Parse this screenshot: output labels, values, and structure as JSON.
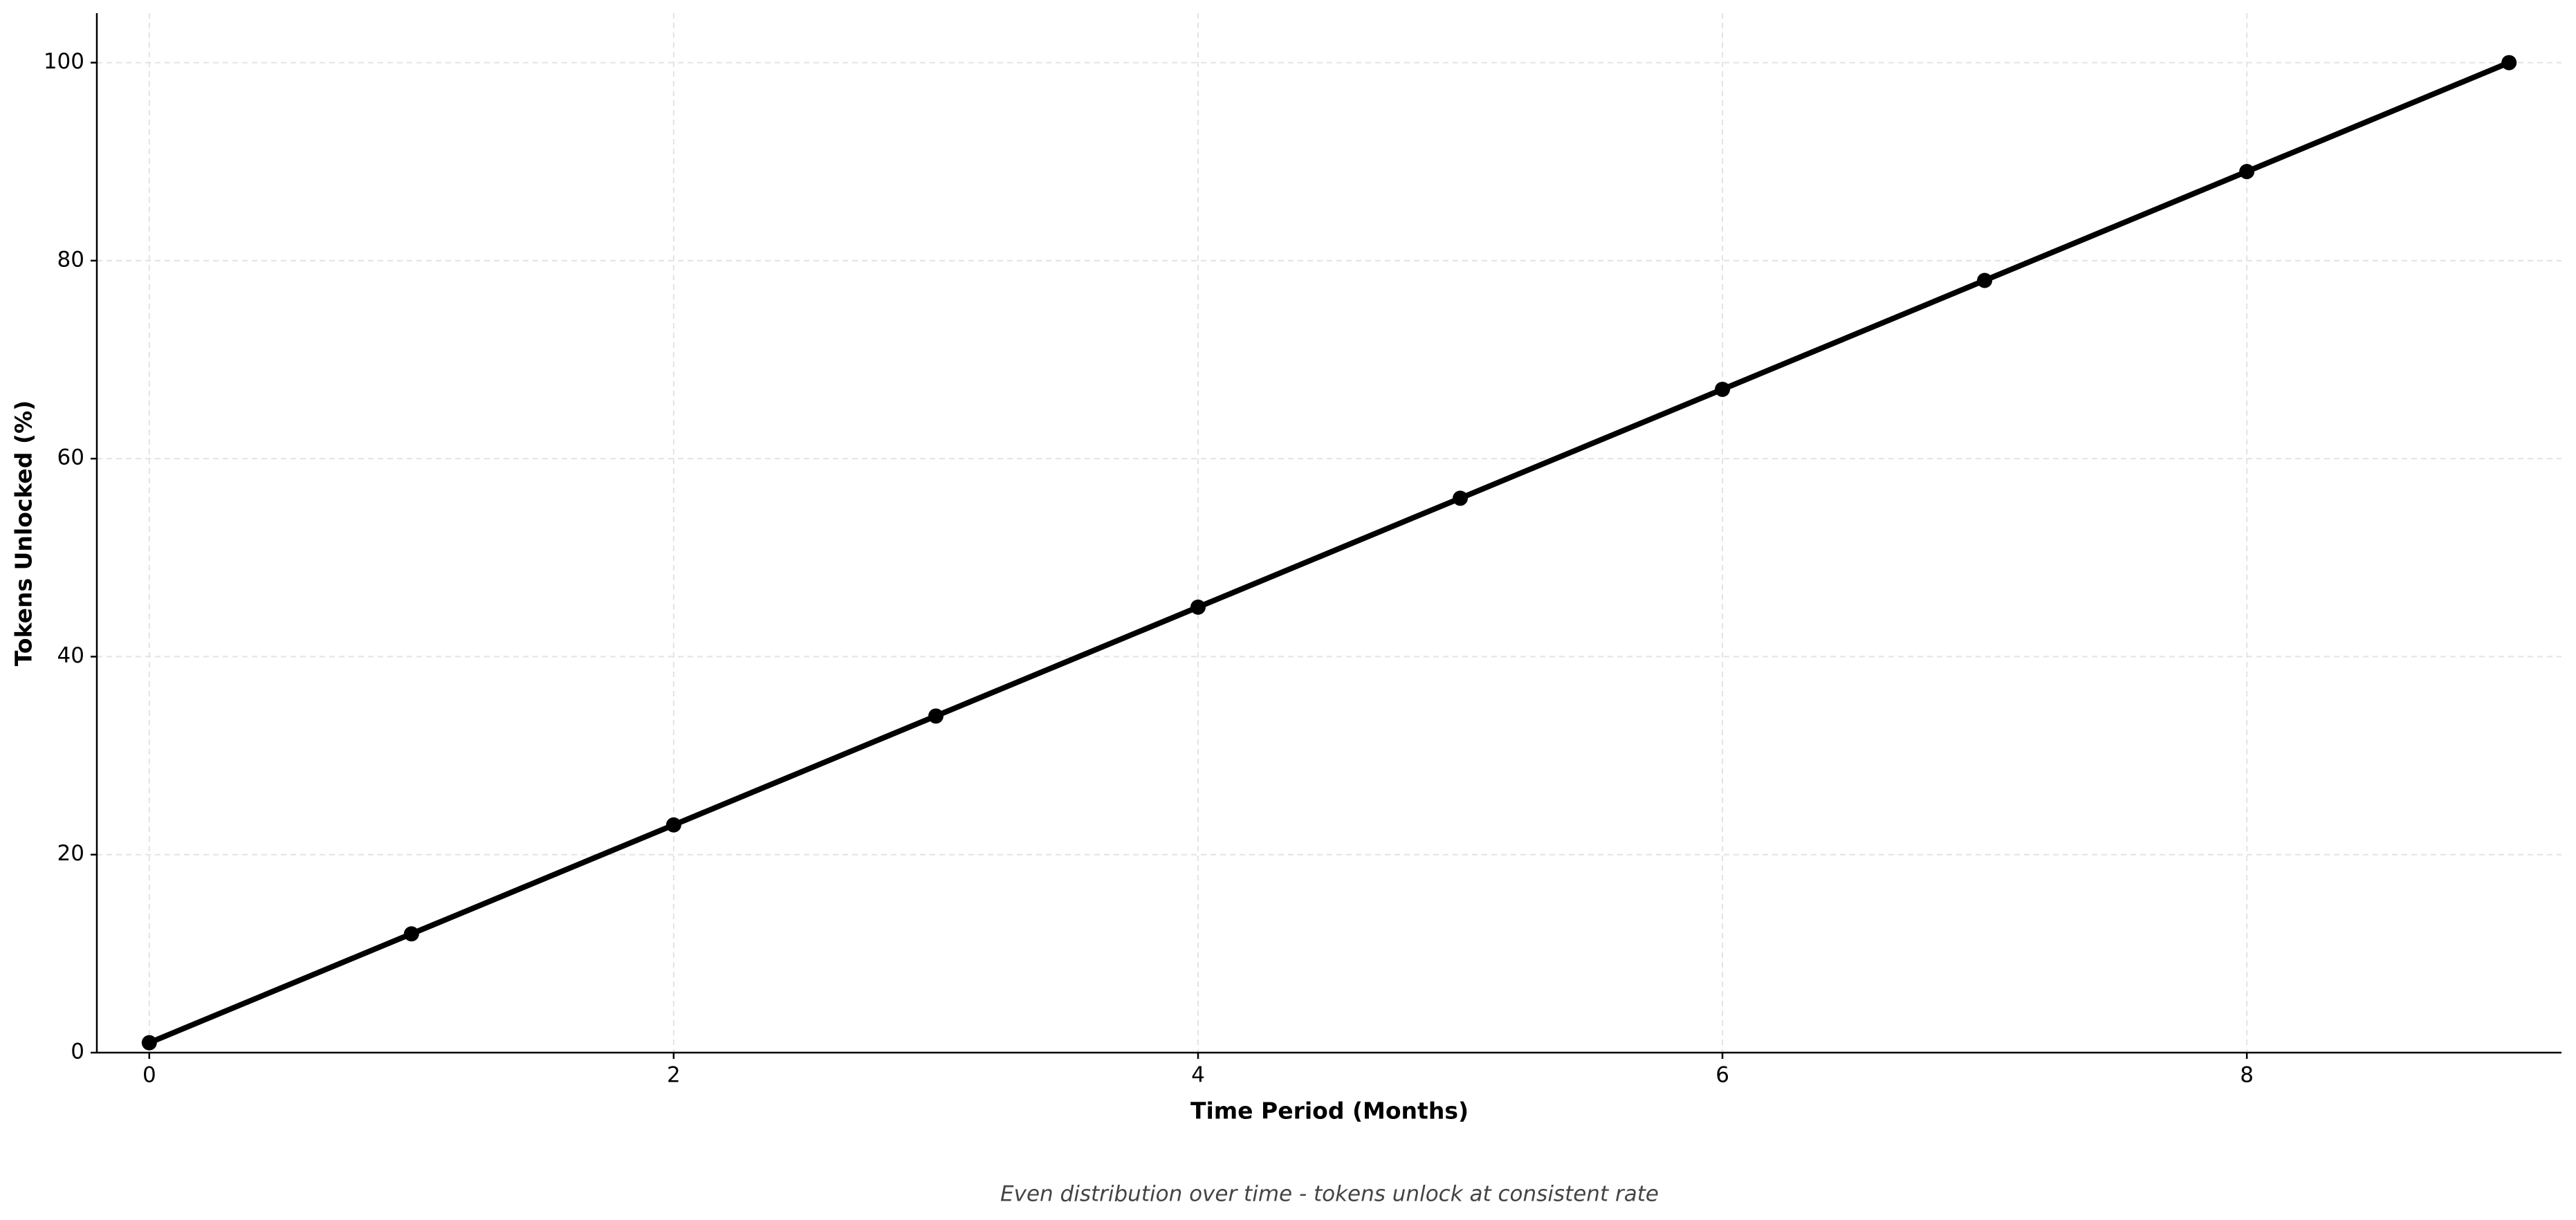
{
  "chart_data": {
    "type": "line",
    "xlabel": "Time Period (Months)",
    "ylabel": "Tokens Unlocked (%)",
    "caption": "Even distribution over time - tokens unlock at consistent rate",
    "x": [
      0,
      1,
      2,
      3,
      4,
      5,
      6,
      7,
      8,
      9
    ],
    "values": [
      1,
      12,
      23,
      34,
      45,
      56,
      67,
      78,
      89,
      100
    ],
    "color": "#000000",
    "xlim": [
      -0.2,
      9.2
    ],
    "ylim": [
      0,
      105
    ],
    "xticks": [
      0,
      2,
      4,
      6,
      8
    ],
    "yticks": [
      0,
      20,
      40,
      60,
      80,
      100
    ],
    "grid": true
  }
}
